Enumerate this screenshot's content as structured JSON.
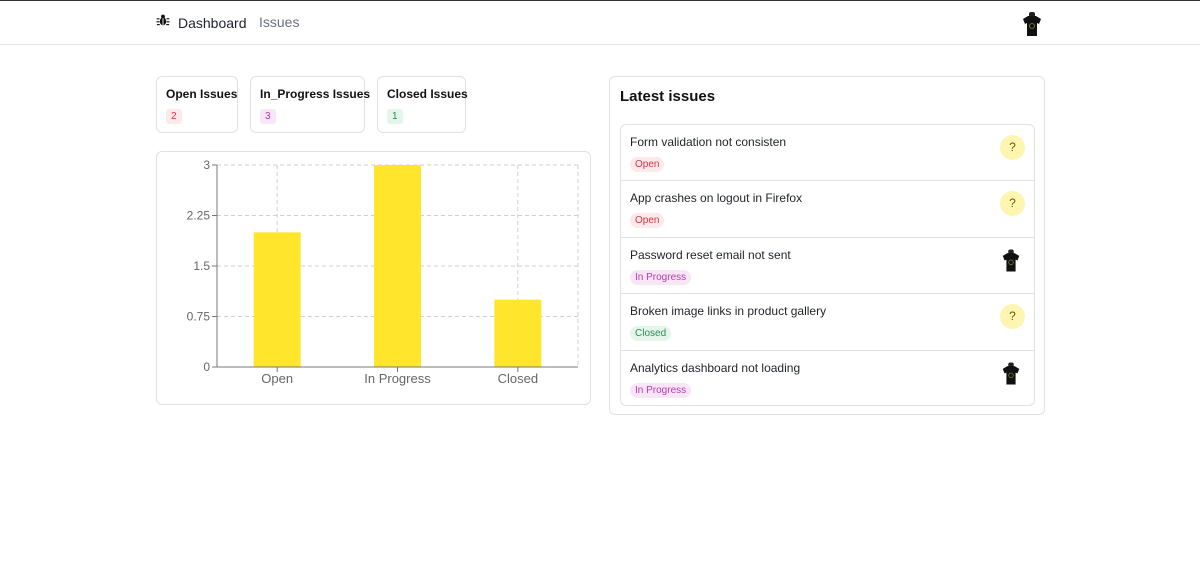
{
  "nav": {
    "brand_label": "Dashboard",
    "issues_label": "Issues",
    "brand_icon": "bug-icon",
    "avatar_icon": "user-avatar-icon"
  },
  "stats": [
    {
      "title": "Open Issues",
      "count": "2",
      "color": "#d1364a"
    },
    {
      "title": "In_Progress Issues",
      "count": "3",
      "color": "#b43bb1"
    },
    {
      "title": "Closed Issues",
      "count": "1",
      "color": "#2f8a54"
    }
  ],
  "chart_data": {
    "type": "bar",
    "categories": [
      "Open",
      "In Progress",
      "Closed"
    ],
    "values": [
      2,
      3,
      1
    ],
    "ylim": [
      0,
      3
    ],
    "yticks": [
      "0",
      "0.75",
      "1.5",
      "2.25",
      "3"
    ],
    "bar_color": "#ffe52c",
    "grid": true
  },
  "latest": {
    "title": "Latest issues",
    "items": [
      {
        "title": "Form validation not consisten",
        "status": "Open",
        "assignee": "?"
      },
      {
        "title": "App crashes on logout in Firefox",
        "status": "Open",
        "assignee": "?"
      },
      {
        "title": "Password reset email not sent",
        "status": "In Progress",
        "assignee": "avatar"
      },
      {
        "title": "Broken image links in product gallery",
        "status": "Closed",
        "assignee": "?"
      },
      {
        "title": "Analytics dashboard not loading",
        "status": "In Progress",
        "assignee": "avatar"
      }
    ]
  }
}
